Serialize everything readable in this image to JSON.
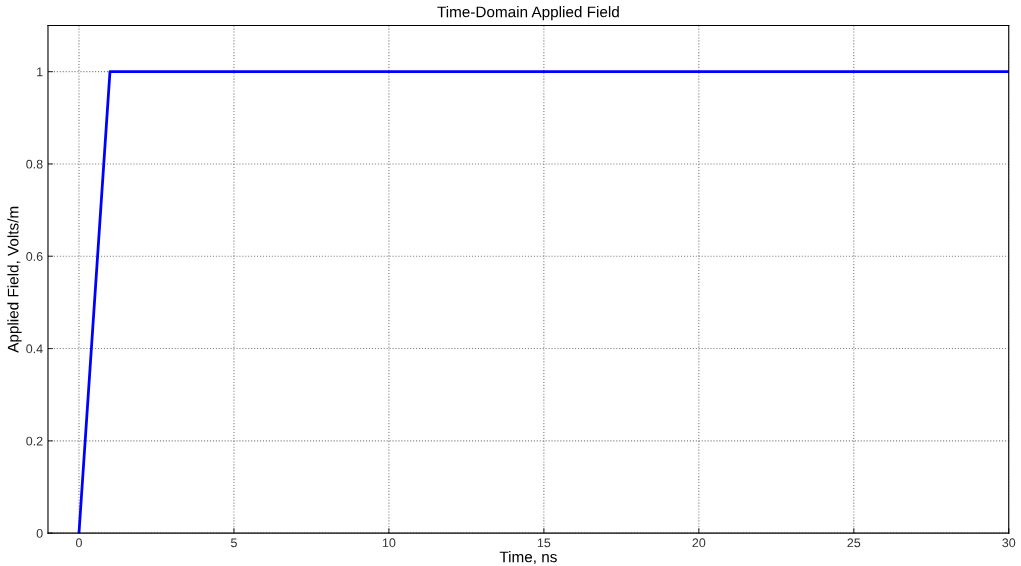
{
  "chart_data": {
    "type": "line",
    "title": "Time-Domain Applied Field",
    "xlabel": "Time, ns",
    "ylabel": "Applied Field, Volts/m",
    "x": [
      0,
      1,
      30
    ],
    "series": [
      {
        "color": "#0000ff",
        "values": [
          0,
          1,
          1
        ]
      }
    ],
    "xlim": [
      -1,
      30
    ],
    "xticks": [
      0,
      5,
      10,
      15,
      20,
      25,
      30
    ],
    "ylim": [
      0,
      1.1
    ],
    "yticks": [
      0,
      0.2,
      0.4,
      0.6,
      0.8,
      1
    ],
    "grid": true,
    "marker": "none",
    "line_style": "solid"
  }
}
